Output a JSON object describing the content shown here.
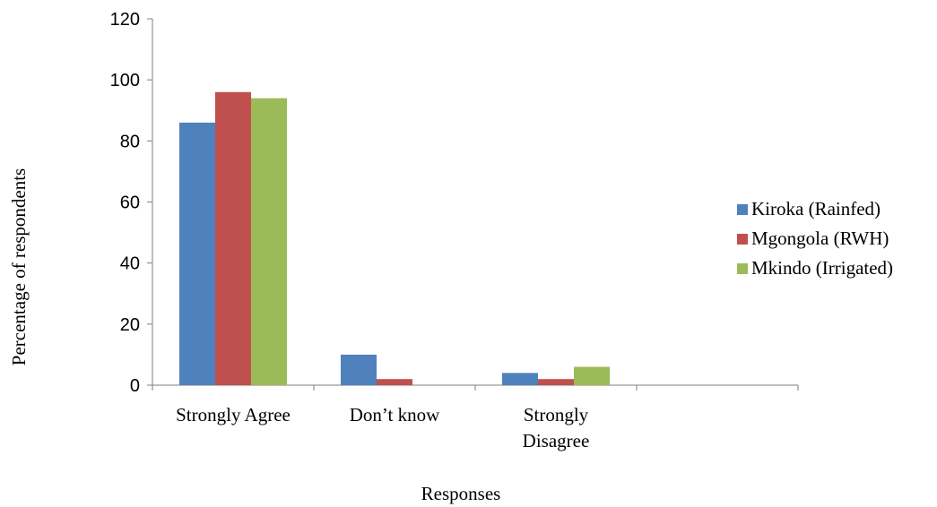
{
  "chart_data": {
    "type": "bar",
    "categories": [
      "Strongly Agree",
      "Don’t know",
      "Strongly Disagree",
      ""
    ],
    "category_lines": [
      [
        "Strongly Agree"
      ],
      [
        "Don’t know"
      ],
      [
        "Strongly",
        "Disagree"
      ],
      []
    ],
    "series": [
      {
        "name": "Kiroka (Rainfed)",
        "color": "#4f81bd",
        "values": [
          86,
          10,
          4,
          null
        ]
      },
      {
        "name": "Mgongola (RWH)",
        "color": "#c0504d",
        "values": [
          96,
          2,
          2,
          null
        ]
      },
      {
        "name": "Mkindo (Irrigated)",
        "color": "#9bbb59",
        "values": [
          94,
          0,
          6,
          null
        ]
      }
    ],
    "yticks": [
      0,
      20,
      40,
      60,
      80,
      100,
      120
    ],
    "ylim": [
      0,
      120
    ],
    "xlabel": "Responses",
    "ylabel": "Percentage of respondents",
    "legend_position": "right",
    "grid": false
  }
}
